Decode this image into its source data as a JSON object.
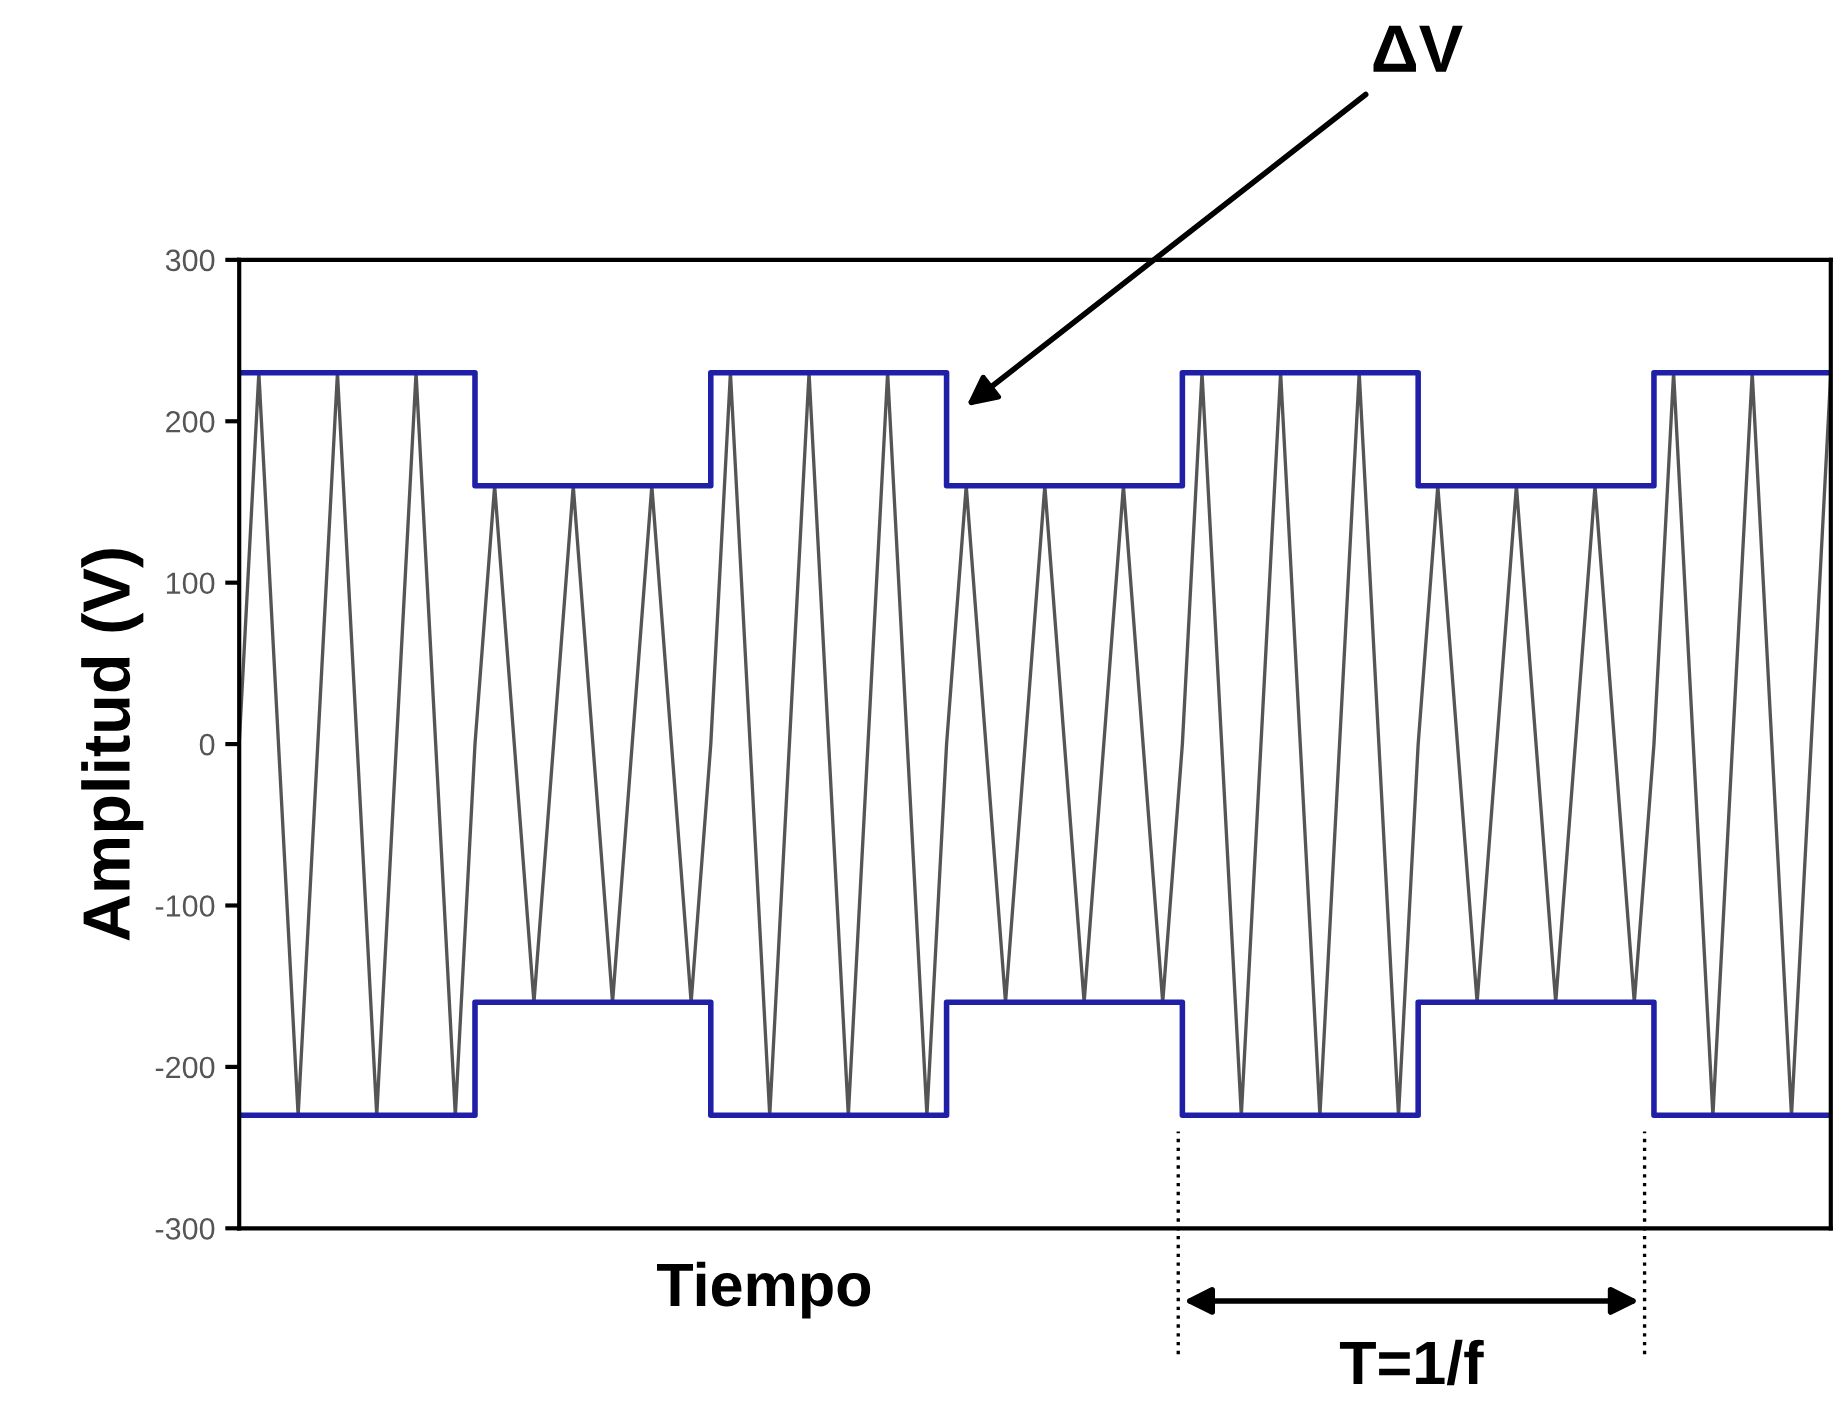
{
  "chart_data": {
    "type": "line",
    "xlabel": "Tiempo",
    "ylabel": "Amplitud (V)",
    "categories": [
      null,
      null,
      null,
      null,
      null,
      null,
      null,
      null,
      null,
      null,
      null,
      null,
      null,
      null,
      null,
      null,
      null,
      null,
      null,
      null,
      null,
      null,
      null,
      null,
      null,
      null,
      null,
      null,
      null,
      null,
      null,
      null,
      null,
      null,
      null,
      null,
      null,
      null,
      null,
      null,
      null,
      null,
      null,
      null,
      null,
      null,
      null,
      null,
      null,
      null,
      null,
      null,
      null,
      null,
      null,
      null,
      null,
      null,
      null,
      null,
      null,
      null,
      null,
      null,
      null,
      null,
      null,
      null,
      null,
      null,
      null,
      null,
      null,
      null,
      null,
      null,
      null,
      null,
      null,
      null,
      null,
      null
    ],
    "ylim": [
      -300,
      300
    ],
    "yticks": [
      -300,
      -200,
      -100,
      0,
      100,
      200,
      300
    ],
    "tick_labels": "y",
    "grid": false,
    "series": [
      {
        "color": "#555555",
        "values": [
          0,
          230,
          0,
          -230,
          0,
          230,
          0,
          -230,
          0,
          230,
          0,
          -230,
          0,
          160,
          0,
          -160,
          0,
          160,
          0,
          -160,
          0,
          160,
          0,
          -160,
          0,
          230,
          0,
          -230,
          0,
          230,
          0,
          -230,
          0,
          230,
          0,
          -230,
          0,
          160,
          0,
          -160,
          0,
          160,
          0,
          -160,
          0,
          160,
          0,
          -160,
          0,
          230,
          0,
          -230,
          0,
          230,
          0,
          -230,
          0,
          230,
          0,
          -230,
          0,
          160,
          0,
          -160,
          0,
          160,
          0,
          -160,
          0,
          160,
          0,
          -160,
          0,
          230,
          0,
          -230,
          0,
          230,
          0,
          -230,
          0,
          230
        ]
      },
      {
        "type": "step",
        "color": "#1f1fa8",
        "values": [
          230,
          230,
          230,
          230,
          230,
          230,
          230,
          230,
          230,
          230,
          230,
          230,
          160,
          160,
          160,
          160,
          160,
          160,
          160,
          160,
          160,
          160,
          160,
          160,
          230,
          230,
          230,
          230,
          230,
          230,
          230,
          230,
          230,
          230,
          230,
          230,
          160,
          160,
          160,
          160,
          160,
          160,
          160,
          160,
          160,
          160,
          160,
          160,
          230,
          230,
          230,
          230,
          230,
          230,
          230,
          230,
          230,
          230,
          230,
          230,
          160,
          160,
          160,
          160,
          160,
          160,
          160,
          160,
          160,
          160,
          160,
          160,
          230,
          230,
          230,
          230,
          230,
          230,
          230,
          230,
          230,
          230
        ]
      },
      {
        "type": "step",
        "color": "#1f1fa8",
        "values": [
          -230,
          -230,
          -230,
          -230,
          -230,
          -230,
          -230,
          -230,
          -230,
          -230,
          -230,
          -230,
          -160,
          -160,
          -160,
          -160,
          -160,
          -160,
          -160,
          -160,
          -160,
          -160,
          -160,
          -160,
          -230,
          -230,
          -230,
          -230,
          -230,
          -230,
          -230,
          -230,
          -230,
          -230,
          -230,
          -230,
          -160,
          -160,
          -160,
          -160,
          -160,
          -160,
          -160,
          -160,
          -160,
          -160,
          -160,
          -160,
          -230,
          -230,
          -230,
          -230,
          -230,
          -230,
          -230,
          -230,
          -230,
          -230,
          -230,
          -230,
          -160,
          -160,
          -160,
          -160,
          -160,
          -160,
          -160,
          -160,
          -160,
          -160,
          -160,
          -160,
          -230,
          -230,
          -230,
          -230,
          -230,
          -230,
          -230,
          -230,
          -230,
          -230
        ]
      }
    ],
    "annotations": [
      "ΔV",
      "T=1/f"
    ]
  }
}
